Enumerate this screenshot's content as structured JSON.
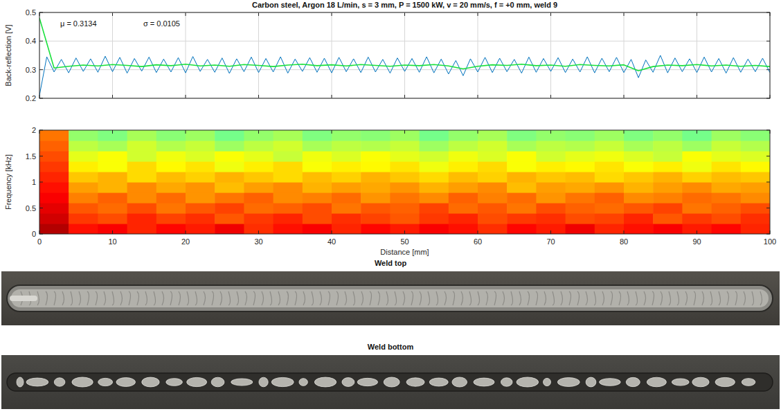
{
  "chart_data": [
    {
      "type": "line",
      "title": "Carbon steel, Argon 18 L/min, s = 3 mm, P = 1500 kW, v = 20 mm/s, f = +0 mm, weld 9",
      "ylabel": "Back-reflection [V]",
      "annotations": [
        "μ = 0.3134",
        "σ = 0.0105"
      ],
      "xlim": [
        0,
        100
      ],
      "xticks": [
        0,
        10,
        20,
        30,
        40,
        50,
        60,
        70,
        80,
        90,
        100
      ],
      "ylim": [
        0.2,
        0.5
      ],
      "yticks": [
        0.2,
        0.3,
        0.4,
        0.5
      ],
      "grid": true,
      "tick_labels": "y",
      "series": [
        {
          "color": "#0072bd",
          "x": [
            0,
            1,
            2,
            3,
            4,
            5,
            6,
            7,
            8,
            9,
            10,
            11,
            12,
            13,
            14,
            15,
            16,
            17,
            18,
            19,
            20,
            21,
            22,
            23,
            24,
            25,
            26,
            27,
            28,
            29,
            30,
            31,
            32,
            33,
            34,
            35,
            36,
            37,
            38,
            39,
            40,
            41,
            42,
            43,
            44,
            45,
            46,
            47,
            48,
            49,
            50,
            51,
            52,
            53,
            54,
            55,
            56,
            57,
            58,
            59,
            60,
            61,
            62,
            63,
            64,
            65,
            66,
            67,
            68,
            69,
            70,
            71,
            72,
            73,
            74,
            75,
            76,
            77,
            78,
            79,
            80,
            81,
            82,
            83,
            84,
            85,
            86,
            87,
            88,
            89,
            90,
            91,
            92,
            93,
            94,
            95,
            96,
            97,
            98,
            99,
            100
          ],
          "values": [
            0.21,
            0.345,
            0.292,
            0.336,
            0.289,
            0.341,
            0.294,
            0.338,
            0.291,
            0.347,
            0.293,
            0.343,
            0.288,
            0.339,
            0.295,
            0.344,
            0.29,
            0.337,
            0.292,
            0.342,
            0.289,
            0.346,
            0.294,
            0.336,
            0.291,
            0.341,
            0.287,
            0.338,
            0.293,
            0.344,
            0.29,
            0.339,
            0.292,
            0.345,
            0.288,
            0.337,
            0.294,
            0.342,
            0.291,
            0.34,
            0.289,
            0.343,
            0.293,
            0.338,
            0.29,
            0.344,
            0.292,
            0.336,
            0.288,
            0.341,
            0.294,
            0.339,
            0.291,
            0.345,
            0.289,
            0.337,
            0.285,
            0.332,
            0.279,
            0.338,
            0.292,
            0.343,
            0.29,
            0.34,
            0.293,
            0.336,
            0.288,
            0.344,
            0.291,
            0.339,
            0.294,
            0.342,
            0.29,
            0.337,
            0.292,
            0.345,
            0.289,
            0.34,
            0.293,
            0.343,
            0.29,
            0.336,
            0.272,
            0.334,
            0.291,
            0.35,
            0.289,
            0.341,
            0.293,
            0.338,
            0.29,
            0.344,
            0.292,
            0.339,
            0.288,
            0.342,
            0.291,
            0.337,
            0.293,
            0.34,
            0.29
          ]
        },
        {
          "color": "#19e03c",
          "x": [
            0,
            2,
            4,
            6,
            8,
            10,
            12,
            14,
            16,
            18,
            20,
            22,
            24,
            26,
            28,
            30,
            32,
            34,
            36,
            38,
            40,
            42,
            44,
            46,
            48,
            50,
            52,
            54,
            56,
            58,
            60,
            62,
            64,
            66,
            68,
            70,
            72,
            74,
            76,
            78,
            80,
            82,
            84,
            86,
            88,
            90,
            92,
            94,
            96,
            98,
            100
          ],
          "values": [
            0.48,
            0.306,
            0.312,
            0.316,
            0.313,
            0.318,
            0.315,
            0.311,
            0.317,
            0.314,
            0.319,
            0.313,
            0.316,
            0.312,
            0.318,
            0.315,
            0.311,
            0.316,
            0.319,
            0.314,
            0.317,
            0.313,
            0.318,
            0.315,
            0.312,
            0.316,
            0.314,
            0.318,
            0.313,
            0.303,
            0.312,
            0.317,
            0.315,
            0.319,
            0.314,
            0.316,
            0.312,
            0.318,
            0.315,
            0.313,
            0.317,
            0.296,
            0.311,
            0.316,
            0.314,
            0.318,
            0.313,
            0.316,
            0.312,
            0.315,
            0.311
          ]
        }
      ]
    },
    {
      "type": "heatmap",
      "xlabel": "Distance [mm]",
      "ylabel": "Frequency [kHz]",
      "xlim": [
        0,
        100
      ],
      "xticks": [
        0,
        10,
        20,
        30,
        40,
        50,
        60,
        70,
        80,
        90,
        100
      ],
      "ylim": [
        0,
        2
      ],
      "yticks": [
        0,
        0.5,
        1,
        1.5,
        2
      ],
      "cells": [
        [
          0.95,
          0.86,
          0.88,
          0.84,
          0.87,
          0.85,
          0.89,
          0.83,
          0.86,
          0.88,
          0.84,
          0.87,
          0.85,
          0.88,
          0.86,
          0.83,
          0.87,
          0.85,
          0.89,
          0.84,
          0.86,
          0.88,
          0.85,
          0.87,
          0.84
        ],
        [
          0.92,
          0.82,
          0.8,
          0.84,
          0.81,
          0.83,
          0.79,
          0.82,
          0.84,
          0.8,
          0.83,
          0.81,
          0.79,
          0.82,
          0.84,
          0.8,
          0.82,
          0.83,
          0.8,
          0.81,
          0.84,
          0.79,
          0.82,
          0.8,
          0.83
        ],
        [
          0.9,
          0.79,
          0.77,
          0.8,
          0.76,
          0.79,
          0.81,
          0.77,
          0.78,
          0.8,
          0.76,
          0.79,
          0.78,
          0.81,
          0.77,
          0.79,
          0.76,
          0.8,
          0.78,
          0.77,
          0.79,
          0.81,
          0.76,
          0.78,
          0.8
        ],
        [
          0.88,
          0.75,
          0.78,
          0.74,
          0.77,
          0.73,
          0.76,
          0.78,
          0.74,
          0.75,
          0.77,
          0.73,
          0.76,
          0.74,
          0.78,
          0.75,
          0.77,
          0.73,
          0.76,
          0.78,
          0.74,
          0.75,
          0.77,
          0.76,
          0.74
        ],
        [
          0.86,
          0.72,
          0.7,
          0.74,
          0.71,
          0.73,
          0.69,
          0.72,
          0.74,
          0.7,
          0.72,
          0.71,
          0.73,
          0.7,
          0.72,
          0.74,
          0.69,
          0.72,
          0.71,
          0.73,
          0.7,
          0.72,
          0.74,
          0.71,
          0.72
        ],
        [
          0.84,
          0.68,
          0.7,
          0.66,
          0.69,
          0.67,
          0.7,
          0.68,
          0.66,
          0.69,
          0.67,
          0.7,
          0.68,
          0.66,
          0.69,
          0.67,
          0.7,
          0.68,
          0.69,
          0.66,
          0.68,
          0.7,
          0.67,
          0.69,
          0.68
        ],
        [
          0.82,
          0.64,
          0.62,
          0.66,
          0.63,
          0.65,
          0.61,
          0.64,
          0.66,
          0.62,
          0.64,
          0.63,
          0.65,
          0.61,
          0.64,
          0.66,
          0.62,
          0.64,
          0.63,
          0.65,
          0.62,
          0.64,
          0.61,
          0.65,
          0.63
        ],
        [
          0.8,
          0.6,
          0.62,
          0.58,
          0.61,
          0.59,
          0.62,
          0.6,
          0.57,
          0.61,
          0.59,
          0.62,
          0.6,
          0.58,
          0.61,
          0.59,
          0.62,
          0.58,
          0.6,
          0.61,
          0.59,
          0.57,
          0.62,
          0.6,
          0.59
        ],
        [
          0.78,
          0.56,
          0.54,
          0.58,
          0.55,
          0.57,
          0.53,
          0.56,
          0.58,
          0.54,
          0.56,
          0.55,
          0.57,
          0.53,
          0.56,
          0.58,
          0.54,
          0.56,
          0.55,
          0.57,
          0.54,
          0.56,
          0.53,
          0.57,
          0.55
        ],
        [
          0.76,
          0.52,
          0.5,
          0.54,
          0.51,
          0.53,
          0.49,
          0.52,
          0.54,
          0.5,
          0.52,
          0.51,
          0.53,
          0.49,
          0.52,
          0.54,
          0.5,
          0.52,
          0.51,
          0.53,
          0.5,
          0.52,
          0.49,
          0.53,
          0.51
        ]
      ]
    }
  ],
  "photos": [
    {
      "title": "Weld top"
    },
    {
      "title": "Weld bottom"
    }
  ]
}
